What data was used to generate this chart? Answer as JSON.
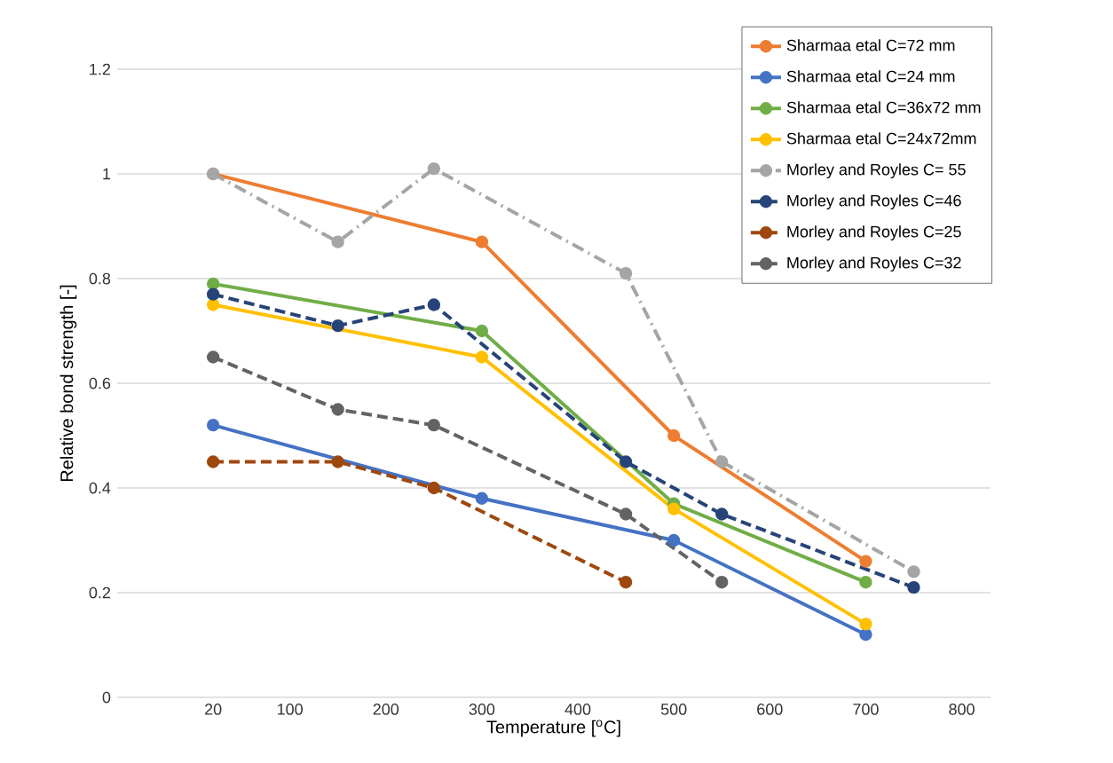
{
  "chart_data": {
    "type": "line",
    "xlabel": "Temperature [$^{o}$C]",
    "ylabel": "Relative bond strength  [-]",
    "xlim": [
      -80,
      830
    ],
    "xticks": [
      20,
      100,
      200,
      300,
      400,
      500,
      600,
      700,
      800
    ],
    "ylim": [
      0,
      1.2
    ],
    "yticks": [
      0,
      0.2,
      0.4,
      0.6,
      0.8,
      1,
      1.2
    ],
    "grid": "y",
    "legend": "top right",
    "marker": "circle",
    "series": [
      {
        "name": "Sharmaa  etal C=72 mm",
        "color": "#ed7d31",
        "line_style": "solid",
        "x": [
          20,
          300,
          500,
          700
        ],
        "values": [
          1.0,
          0.87,
          0.5,
          0.26
        ]
      },
      {
        "name": "Sharmaa  etal C=24 mm",
        "color": "#4472c4",
        "line_style": "solid",
        "x": [
          20,
          300,
          500,
          700
        ],
        "values": [
          0.52,
          0.38,
          0.3,
          0.12
        ]
      },
      {
        "name": "Sharmaa  etal C=36x72 mm",
        "color": "#70ad47",
        "line_style": "solid",
        "x": [
          20,
          300,
          500,
          700
        ],
        "values": [
          0.79,
          0.7,
          0.37,
          0.22
        ]
      },
      {
        "name": "Sharmaa  etal C=24x72mm",
        "color": "#ffc000",
        "line_style": "solid",
        "x": [
          20,
          300,
          500,
          700
        ],
        "values": [
          0.75,
          0.65,
          0.36,
          0.14
        ]
      },
      {
        "name": "Morley and  Royles C= 55",
        "color": "#a5a5a5",
        "line_style": "dashdotted",
        "x": [
          20,
          150,
          250,
          450,
          550,
          750
        ],
        "values": [
          1.0,
          0.87,
          1.01,
          0.81,
          0.45,
          0.24
        ]
      },
      {
        "name": "Morley and Royles C=46",
        "color": "#264478",
        "line_style": "dashed",
        "x": [
          20,
          150,
          250,
          450,
          550,
          750
        ],
        "values": [
          0.77,
          0.71,
          0.75,
          0.45,
          0.35,
          0.21
        ]
      },
      {
        "name": "Morley and Royles C=25",
        "color": "#9e480e",
        "line_style": "dashed",
        "x": [
          20,
          150,
          250,
          450
        ],
        "values": [
          0.45,
          0.45,
          0.4,
          0.22
        ]
      },
      {
        "name": "Morley and Royles C=32",
        "color": "#636363",
        "line_style": "dashed",
        "x": [
          20,
          150,
          250,
          450,
          550
        ],
        "values": [
          0.65,
          0.55,
          0.52,
          0.35,
          0.22
        ]
      }
    ]
  }
}
